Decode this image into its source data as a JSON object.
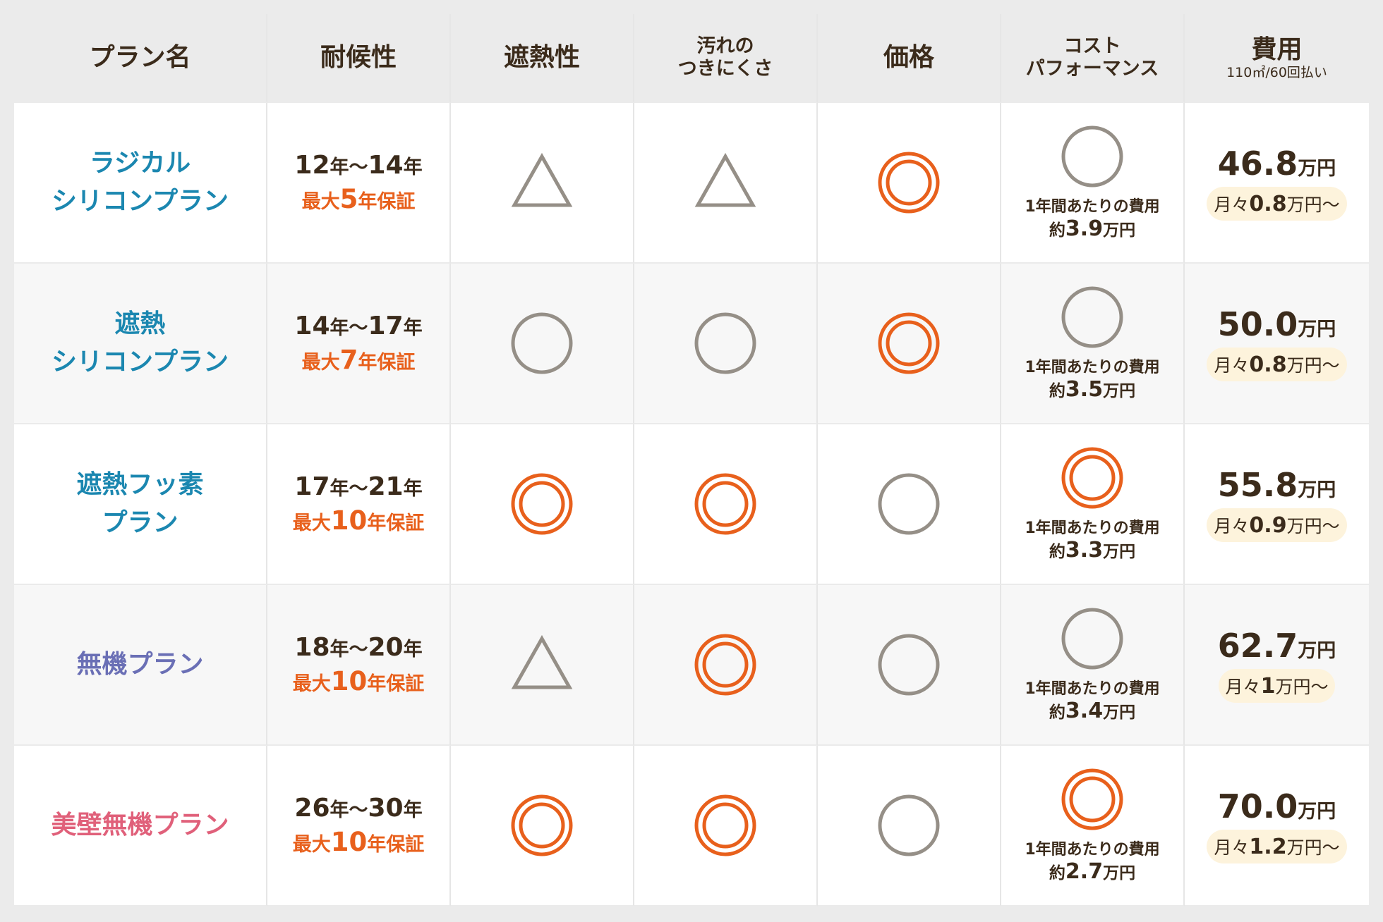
{
  "header": {
    "plan": "プラン名",
    "durability": "耐候性",
    "heat": "遮熱性",
    "dirt": [
      "汚れの",
      "つきにくさ"
    ],
    "price": "価格",
    "cost_perf": [
      "コスト",
      "パフォーマンス"
    ],
    "cost": "費用",
    "cost_note": "110㎡/60回払い"
  },
  "colors": {
    "orange": "#e8601c",
    "gray": "#958f87",
    "blue": "#1b87b0",
    "purple": "#6a6fb5",
    "pink": "#e0607a"
  },
  "symbols": {
    "double": "◎",
    "single": "○",
    "triangle": "△"
  },
  "rows": [
    {
      "name": [
        "ラジカル",
        "シリコンプラン"
      ],
      "color": "#1b87b0",
      "years": [
        "12",
        "年～",
        "14",
        "年"
      ],
      "warranty": [
        "最大",
        "5",
        "年保証"
      ],
      "heat": "triangle",
      "dirt": "triangle",
      "price": "double",
      "cp": "single",
      "cp_label": "1年間あたりの費用",
      "cp_value": [
        "約",
        "3.9",
        "万円"
      ],
      "cost": [
        "46.8",
        "万円"
      ],
      "monthly": [
        "月々",
        "0.8",
        "万円～"
      ]
    },
    {
      "name": [
        "遮熱",
        "シリコンプラン"
      ],
      "color": "#1b87b0",
      "years": [
        "14",
        "年～",
        "17",
        "年"
      ],
      "warranty": [
        "最大",
        "7",
        "年保証"
      ],
      "heat": "single",
      "dirt": "single",
      "price": "double",
      "cp": "single",
      "cp_label": "1年間あたりの費用",
      "cp_value": [
        "約",
        "3.5",
        "万円"
      ],
      "cost": [
        "50.0",
        "万円"
      ],
      "monthly": [
        "月々",
        "0.8",
        "万円～"
      ]
    },
    {
      "name": [
        "遮熱フッ素",
        "プラン"
      ],
      "color": "#1b87b0",
      "years": [
        "17",
        "年～",
        "21",
        "年"
      ],
      "warranty": [
        "最大",
        "10",
        "年保証"
      ],
      "heat": "double",
      "dirt": "double",
      "price": "single",
      "cp": "double",
      "cp_label": "1年間あたりの費用",
      "cp_value": [
        "約",
        "3.3",
        "万円"
      ],
      "cost": [
        "55.8",
        "万円"
      ],
      "monthly": [
        "月々",
        "0.9",
        "万円～"
      ]
    },
    {
      "name": [
        "無機プラン"
      ],
      "color": "#6a6fb5",
      "years": [
        "18",
        "年～",
        "20",
        "年"
      ],
      "warranty": [
        "最大",
        "10",
        "年保証"
      ],
      "heat": "triangle",
      "dirt": "double",
      "price": "single",
      "cp": "single",
      "cp_label": "1年間あたりの費用",
      "cp_value": [
        "約",
        "3.4",
        "万円"
      ],
      "cost": [
        "62.7",
        "万円"
      ],
      "monthly": [
        "月々",
        "1",
        "万円～"
      ]
    },
    {
      "name": [
        "美壁無機プラン"
      ],
      "color": "#e0607a",
      "years": [
        "26",
        "年～",
        "30",
        "年"
      ],
      "warranty": [
        "最大",
        "10",
        "年保証"
      ],
      "heat": "double",
      "dirt": "double",
      "price": "single",
      "cp": "double",
      "cp_label": "1年間あたりの費用",
      "cp_value": [
        "約",
        "2.7",
        "万円"
      ],
      "cost": [
        "70.0",
        "万円"
      ],
      "monthly": [
        "月々",
        "1.2",
        "万円～"
      ]
    }
  ]
}
